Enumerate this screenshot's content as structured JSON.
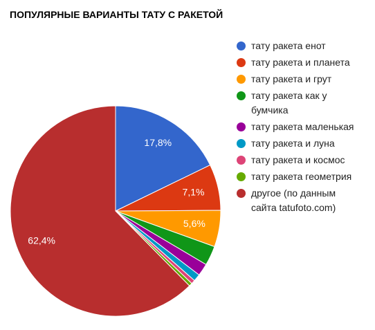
{
  "chart_data": {
    "type": "pie",
    "title": "ПОПУЛЯРНЫЕ ВАРИАНТЫ ТАТУ С РАКЕТОЙ",
    "categories": [
      "тату ракета енот",
      "тату ракета и планета",
      "тату ракета и грут",
      "тату ракета как у бумчика",
      "тату ракета маленькая",
      "тату ракета и луна",
      "тату ракета и космос",
      "тату ракета геометрия",
      "другое (по данным сайта tatufoto.com)"
    ],
    "values": [
      17.8,
      7.1,
      5.6,
      3.0,
      1.9,
      1.1,
      0.6,
      0.5,
      62.4
    ],
    "value_labels": [
      "17,8%",
      "7,1%",
      "5,6%",
      null,
      null,
      null,
      null,
      null,
      "62,4%"
    ],
    "colors": [
      "#3366cc",
      "#dc3912",
      "#ff9900",
      "#109618",
      "#990099",
      "#0099c6",
      "#dd4477",
      "#66aa00",
      "#b82e2e"
    ],
    "legend": "right"
  }
}
